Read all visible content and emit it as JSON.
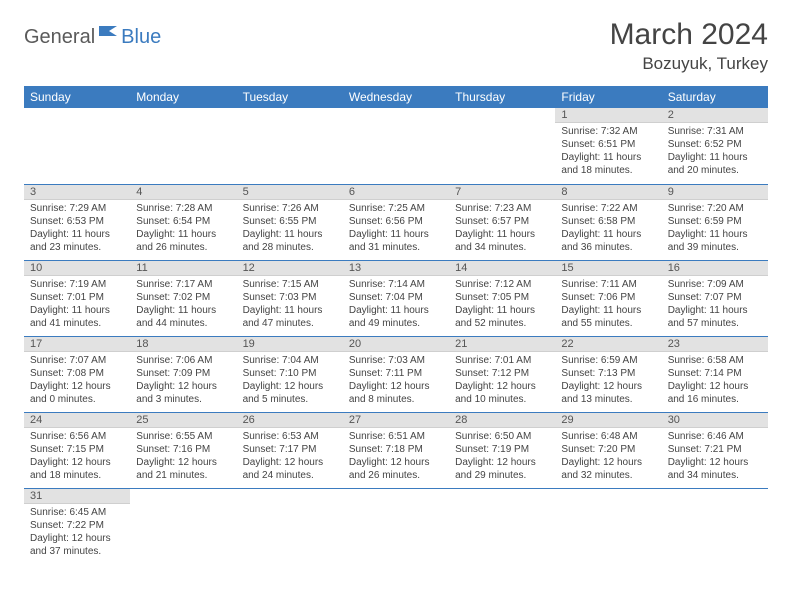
{
  "brand": {
    "part1": "General",
    "part2": "Blue"
  },
  "title": "March 2024",
  "location": "Bozuyuk, Turkey",
  "colors": {
    "header_bg": "#3b7bbf",
    "header_fg": "#ffffff",
    "daynum_bg": "#e2e2e2",
    "row_border": "#3b7bbf",
    "text": "#444444"
  },
  "day_names": [
    "Sunday",
    "Monday",
    "Tuesday",
    "Wednesday",
    "Thursday",
    "Friday",
    "Saturday"
  ],
  "weeks": [
    [
      {
        "n": "",
        "sr": "",
        "ss": "",
        "dl": ""
      },
      {
        "n": "",
        "sr": "",
        "ss": "",
        "dl": ""
      },
      {
        "n": "",
        "sr": "",
        "ss": "",
        "dl": ""
      },
      {
        "n": "",
        "sr": "",
        "ss": "",
        "dl": ""
      },
      {
        "n": "",
        "sr": "",
        "ss": "",
        "dl": ""
      },
      {
        "n": "1",
        "sr": "Sunrise: 7:32 AM",
        "ss": "Sunset: 6:51 PM",
        "dl": "Daylight: 11 hours and 18 minutes."
      },
      {
        "n": "2",
        "sr": "Sunrise: 7:31 AM",
        "ss": "Sunset: 6:52 PM",
        "dl": "Daylight: 11 hours and 20 minutes."
      }
    ],
    [
      {
        "n": "3",
        "sr": "Sunrise: 7:29 AM",
        "ss": "Sunset: 6:53 PM",
        "dl": "Daylight: 11 hours and 23 minutes."
      },
      {
        "n": "4",
        "sr": "Sunrise: 7:28 AM",
        "ss": "Sunset: 6:54 PM",
        "dl": "Daylight: 11 hours and 26 minutes."
      },
      {
        "n": "5",
        "sr": "Sunrise: 7:26 AM",
        "ss": "Sunset: 6:55 PM",
        "dl": "Daylight: 11 hours and 28 minutes."
      },
      {
        "n": "6",
        "sr": "Sunrise: 7:25 AM",
        "ss": "Sunset: 6:56 PM",
        "dl": "Daylight: 11 hours and 31 minutes."
      },
      {
        "n": "7",
        "sr": "Sunrise: 7:23 AM",
        "ss": "Sunset: 6:57 PM",
        "dl": "Daylight: 11 hours and 34 minutes."
      },
      {
        "n": "8",
        "sr": "Sunrise: 7:22 AM",
        "ss": "Sunset: 6:58 PM",
        "dl": "Daylight: 11 hours and 36 minutes."
      },
      {
        "n": "9",
        "sr": "Sunrise: 7:20 AM",
        "ss": "Sunset: 6:59 PM",
        "dl": "Daylight: 11 hours and 39 minutes."
      }
    ],
    [
      {
        "n": "10",
        "sr": "Sunrise: 7:19 AM",
        "ss": "Sunset: 7:01 PM",
        "dl": "Daylight: 11 hours and 41 minutes."
      },
      {
        "n": "11",
        "sr": "Sunrise: 7:17 AM",
        "ss": "Sunset: 7:02 PM",
        "dl": "Daylight: 11 hours and 44 minutes."
      },
      {
        "n": "12",
        "sr": "Sunrise: 7:15 AM",
        "ss": "Sunset: 7:03 PM",
        "dl": "Daylight: 11 hours and 47 minutes."
      },
      {
        "n": "13",
        "sr": "Sunrise: 7:14 AM",
        "ss": "Sunset: 7:04 PM",
        "dl": "Daylight: 11 hours and 49 minutes."
      },
      {
        "n": "14",
        "sr": "Sunrise: 7:12 AM",
        "ss": "Sunset: 7:05 PM",
        "dl": "Daylight: 11 hours and 52 minutes."
      },
      {
        "n": "15",
        "sr": "Sunrise: 7:11 AM",
        "ss": "Sunset: 7:06 PM",
        "dl": "Daylight: 11 hours and 55 minutes."
      },
      {
        "n": "16",
        "sr": "Sunrise: 7:09 AM",
        "ss": "Sunset: 7:07 PM",
        "dl": "Daylight: 11 hours and 57 minutes."
      }
    ],
    [
      {
        "n": "17",
        "sr": "Sunrise: 7:07 AM",
        "ss": "Sunset: 7:08 PM",
        "dl": "Daylight: 12 hours and 0 minutes."
      },
      {
        "n": "18",
        "sr": "Sunrise: 7:06 AM",
        "ss": "Sunset: 7:09 PM",
        "dl": "Daylight: 12 hours and 3 minutes."
      },
      {
        "n": "19",
        "sr": "Sunrise: 7:04 AM",
        "ss": "Sunset: 7:10 PM",
        "dl": "Daylight: 12 hours and 5 minutes."
      },
      {
        "n": "20",
        "sr": "Sunrise: 7:03 AM",
        "ss": "Sunset: 7:11 PM",
        "dl": "Daylight: 12 hours and 8 minutes."
      },
      {
        "n": "21",
        "sr": "Sunrise: 7:01 AM",
        "ss": "Sunset: 7:12 PM",
        "dl": "Daylight: 12 hours and 10 minutes."
      },
      {
        "n": "22",
        "sr": "Sunrise: 6:59 AM",
        "ss": "Sunset: 7:13 PM",
        "dl": "Daylight: 12 hours and 13 minutes."
      },
      {
        "n": "23",
        "sr": "Sunrise: 6:58 AM",
        "ss": "Sunset: 7:14 PM",
        "dl": "Daylight: 12 hours and 16 minutes."
      }
    ],
    [
      {
        "n": "24",
        "sr": "Sunrise: 6:56 AM",
        "ss": "Sunset: 7:15 PM",
        "dl": "Daylight: 12 hours and 18 minutes."
      },
      {
        "n": "25",
        "sr": "Sunrise: 6:55 AM",
        "ss": "Sunset: 7:16 PM",
        "dl": "Daylight: 12 hours and 21 minutes."
      },
      {
        "n": "26",
        "sr": "Sunrise: 6:53 AM",
        "ss": "Sunset: 7:17 PM",
        "dl": "Daylight: 12 hours and 24 minutes."
      },
      {
        "n": "27",
        "sr": "Sunrise: 6:51 AM",
        "ss": "Sunset: 7:18 PM",
        "dl": "Daylight: 12 hours and 26 minutes."
      },
      {
        "n": "28",
        "sr": "Sunrise: 6:50 AM",
        "ss": "Sunset: 7:19 PM",
        "dl": "Daylight: 12 hours and 29 minutes."
      },
      {
        "n": "29",
        "sr": "Sunrise: 6:48 AM",
        "ss": "Sunset: 7:20 PM",
        "dl": "Daylight: 12 hours and 32 minutes."
      },
      {
        "n": "30",
        "sr": "Sunrise: 6:46 AM",
        "ss": "Sunset: 7:21 PM",
        "dl": "Daylight: 12 hours and 34 minutes."
      }
    ],
    [
      {
        "n": "31",
        "sr": "Sunrise: 6:45 AM",
        "ss": "Sunset: 7:22 PM",
        "dl": "Daylight: 12 hours and 37 minutes."
      },
      {
        "n": "",
        "sr": "",
        "ss": "",
        "dl": ""
      },
      {
        "n": "",
        "sr": "",
        "ss": "",
        "dl": ""
      },
      {
        "n": "",
        "sr": "",
        "ss": "",
        "dl": ""
      },
      {
        "n": "",
        "sr": "",
        "ss": "",
        "dl": ""
      },
      {
        "n": "",
        "sr": "",
        "ss": "",
        "dl": ""
      },
      {
        "n": "",
        "sr": "",
        "ss": "",
        "dl": ""
      }
    ]
  ]
}
